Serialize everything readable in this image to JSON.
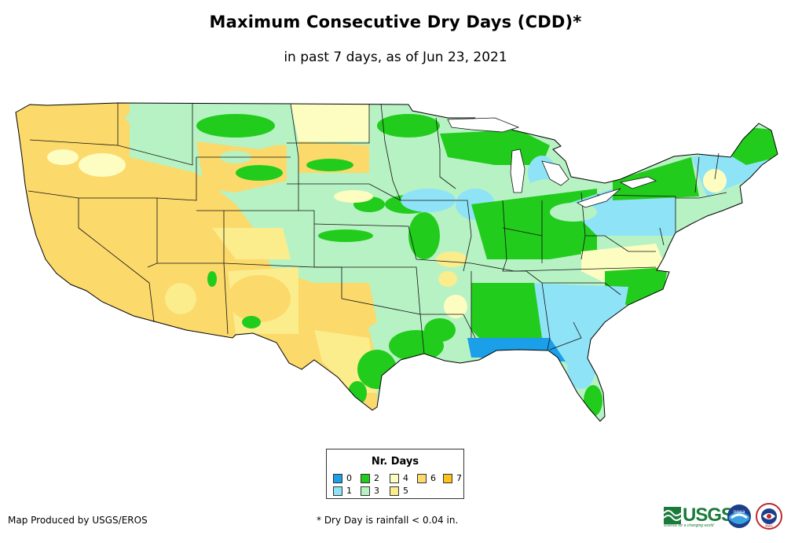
{
  "title": "Maximum Consecutive Dry Days (CDD)*",
  "subtitle": "in past 7 days, as of Jun 23, 2021",
  "legend": {
    "title": "Nr. Days",
    "items": [
      {
        "label": "0",
        "color": "#1a9fe8"
      },
      {
        "label": "1",
        "color": "#8fe3f7"
      },
      {
        "label": "2",
        "color": "#22cc1c"
      },
      {
        "label": "3",
        "color": "#b7f2c4"
      },
      {
        "label": "4",
        "color": "#fdfdc2"
      },
      {
        "label": "5",
        "color": "#fbec8c"
      },
      {
        "label": "6",
        "color": "#fbd96b"
      },
      {
        "label": "7",
        "color": "#fcc31a"
      }
    ]
  },
  "credit": "Map Produced by USGS/EROS",
  "footnote": "* Dry Day is rainfall < 0.04 in.",
  "logos": {
    "usgs_text": "USGS",
    "usgs_tagline": "science for a changing world",
    "noaa_text": "noaa",
    "nws_text": "NWS"
  }
}
